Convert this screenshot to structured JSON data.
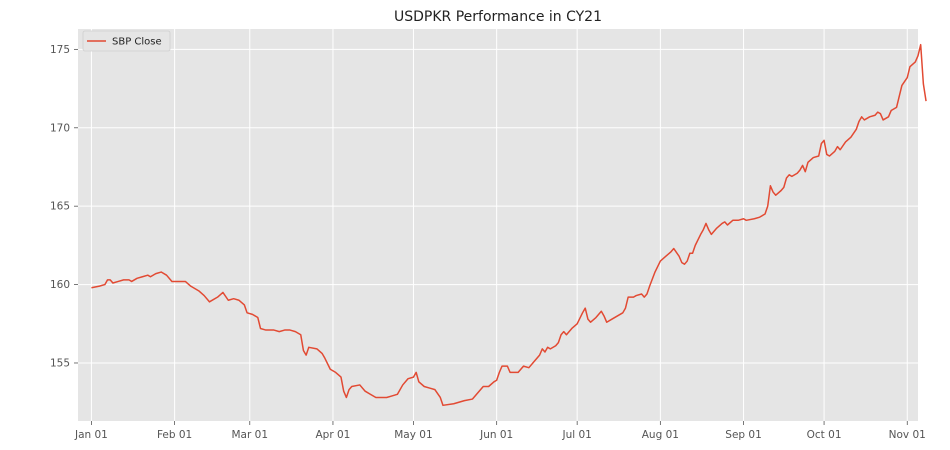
{
  "chart_data": {
    "type": "line",
    "title": "USDPKR Performance in CY21",
    "xlabel": "",
    "ylabel": "",
    "x_ticks": [
      "Jan 01",
      "Feb 01",
      "Mar 01",
      "Apr 01",
      "May 01",
      "Jun 01",
      "Jul 01",
      "Aug 01",
      "Sep 01",
      "Oct 01",
      "Nov 01"
    ],
    "y_ticks": [
      155,
      160,
      165,
      170,
      175
    ],
    "xlim": [
      "2020-12-27",
      "2021-11-05"
    ],
    "ylim": [
      151.3,
      176.3
    ],
    "grid": true,
    "legend_position": "top-left",
    "series": [
      {
        "name": "SBP Close",
        "color": "#E24A33",
        "points": [
          [
            "2021-01-01",
            159.8
          ],
          [
            "2021-01-04",
            159.9
          ],
          [
            "2021-01-06",
            160.0
          ],
          [
            "2021-01-07",
            160.3
          ],
          [
            "2021-01-08",
            160.3
          ],
          [
            "2021-01-09",
            160.1
          ],
          [
            "2021-01-11",
            160.2
          ],
          [
            "2021-01-13",
            160.3
          ],
          [
            "2021-01-15",
            160.3
          ],
          [
            "2021-01-16",
            160.2
          ],
          [
            "2021-01-18",
            160.4
          ],
          [
            "2021-01-20",
            160.5
          ],
          [
            "2021-01-22",
            160.6
          ],
          [
            "2021-01-23",
            160.5
          ],
          [
            "2021-01-25",
            160.7
          ],
          [
            "2021-01-27",
            160.8
          ],
          [
            "2021-01-29",
            160.6
          ],
          [
            "2021-01-31",
            160.2
          ],
          [
            "2021-02-03",
            160.2
          ],
          [
            "2021-02-05",
            160.2
          ],
          [
            "2021-02-07",
            159.9
          ],
          [
            "2021-02-10",
            159.6
          ],
          [
            "2021-02-12",
            159.3
          ],
          [
            "2021-02-14",
            158.9
          ],
          [
            "2021-02-17",
            159.2
          ],
          [
            "2021-02-19",
            159.5
          ],
          [
            "2021-02-21",
            159.0
          ],
          [
            "2021-02-23",
            159.1
          ],
          [
            "2021-02-25",
            159.0
          ],
          [
            "2021-02-27",
            158.7
          ],
          [
            "2021-02-28",
            158.2
          ],
          [
            "2021-03-02",
            158.1
          ],
          [
            "2021-03-04",
            157.9
          ],
          [
            "2021-03-05",
            157.2
          ],
          [
            "2021-03-07",
            157.1
          ],
          [
            "2021-03-10",
            157.1
          ],
          [
            "2021-03-12",
            157.0
          ],
          [
            "2021-03-14",
            157.1
          ],
          [
            "2021-03-16",
            157.1
          ],
          [
            "2021-03-18",
            157.0
          ],
          [
            "2021-03-20",
            156.8
          ],
          [
            "2021-03-21",
            155.8
          ],
          [
            "2021-03-22",
            155.5
          ],
          [
            "2021-03-23",
            156.0
          ],
          [
            "2021-03-26",
            155.9
          ],
          [
            "2021-03-28",
            155.6
          ],
          [
            "2021-03-29",
            155.3
          ],
          [
            "2021-03-31",
            154.6
          ],
          [
            "2021-04-02",
            154.4
          ],
          [
            "2021-04-04",
            154.1
          ],
          [
            "2021-04-05",
            153.2
          ],
          [
            "2021-04-06",
            152.8
          ],
          [
            "2021-04-07",
            153.3
          ],
          [
            "2021-04-08",
            153.5
          ],
          [
            "2021-04-11",
            153.6
          ],
          [
            "2021-04-13",
            153.2
          ],
          [
            "2021-04-15",
            153.0
          ],
          [
            "2021-04-17",
            152.8
          ],
          [
            "2021-04-19",
            152.8
          ],
          [
            "2021-04-21",
            152.8
          ],
          [
            "2021-04-23",
            152.9
          ],
          [
            "2021-04-25",
            153.0
          ],
          [
            "2021-04-27",
            153.6
          ],
          [
            "2021-04-29",
            154.0
          ],
          [
            "2021-05-01",
            154.1
          ],
          [
            "2021-05-02",
            154.4
          ],
          [
            "2021-05-03",
            153.8
          ],
          [
            "2021-05-05",
            153.5
          ],
          [
            "2021-05-07",
            153.4
          ],
          [
            "2021-05-09",
            153.3
          ],
          [
            "2021-05-11",
            152.8
          ],
          [
            "2021-05-12",
            152.3
          ],
          [
            "2021-05-16",
            152.4
          ],
          [
            "2021-05-20",
            152.6
          ],
          [
            "2021-05-23",
            152.7
          ],
          [
            "2021-05-25",
            153.1
          ],
          [
            "2021-05-27",
            153.5
          ],
          [
            "2021-05-29",
            153.5
          ],
          [
            "2021-05-31",
            153.8
          ],
          [
            "2021-06-01",
            153.9
          ],
          [
            "2021-06-02",
            154.4
          ],
          [
            "2021-06-03",
            154.8
          ],
          [
            "2021-06-05",
            154.8
          ],
          [
            "2021-06-06",
            154.4
          ],
          [
            "2021-06-09",
            154.4
          ],
          [
            "2021-06-11",
            154.8
          ],
          [
            "2021-06-13",
            154.7
          ],
          [
            "2021-06-15",
            155.1
          ],
          [
            "2021-06-17",
            155.5
          ],
          [
            "2021-06-18",
            155.9
          ],
          [
            "2021-06-19",
            155.7
          ],
          [
            "2021-06-20",
            156.0
          ],
          [
            "2021-06-21",
            155.9
          ],
          [
            "2021-06-23",
            156.1
          ],
          [
            "2021-06-24",
            156.3
          ],
          [
            "2021-06-25",
            156.8
          ],
          [
            "2021-06-26",
            157.0
          ],
          [
            "2021-06-27",
            156.8
          ],
          [
            "2021-06-29",
            157.2
          ],
          [
            "2021-07-01",
            157.5
          ],
          [
            "2021-07-03",
            158.2
          ],
          [
            "2021-07-04",
            158.5
          ],
          [
            "2021-07-05",
            157.8
          ],
          [
            "2021-07-06",
            157.6
          ],
          [
            "2021-07-08",
            157.9
          ],
          [
            "2021-07-10",
            158.3
          ],
          [
            "2021-07-11",
            158.0
          ],
          [
            "2021-07-12",
            157.6
          ],
          [
            "2021-07-14",
            157.8
          ],
          [
            "2021-07-16",
            158.0
          ],
          [
            "2021-07-18",
            158.2
          ],
          [
            "2021-07-19",
            158.5
          ],
          [
            "2021-07-20",
            159.2
          ],
          [
            "2021-07-22",
            159.2
          ],
          [
            "2021-07-23",
            159.3
          ],
          [
            "2021-07-25",
            159.4
          ],
          [
            "2021-07-26",
            159.2
          ],
          [
            "2021-07-27",
            159.4
          ],
          [
            "2021-07-28",
            159.9
          ],
          [
            "2021-07-30",
            160.8
          ],
          [
            "2021-08-01",
            161.5
          ],
          [
            "2021-08-03",
            161.8
          ],
          [
            "2021-08-05",
            162.1
          ],
          [
            "2021-08-06",
            162.3
          ],
          [
            "2021-08-08",
            161.8
          ],
          [
            "2021-08-09",
            161.4
          ],
          [
            "2021-08-10",
            161.3
          ],
          [
            "2021-08-11",
            161.5
          ],
          [
            "2021-08-12",
            162.0
          ],
          [
            "2021-08-13",
            162.0
          ],
          [
            "2021-08-14",
            162.5
          ],
          [
            "2021-08-16",
            163.2
          ],
          [
            "2021-08-17",
            163.5
          ],
          [
            "2021-08-18",
            163.9
          ],
          [
            "2021-08-19",
            163.5
          ],
          [
            "2021-08-20",
            163.2
          ],
          [
            "2021-08-22",
            163.6
          ],
          [
            "2021-08-24",
            163.9
          ],
          [
            "2021-08-25",
            164.0
          ],
          [
            "2021-08-26",
            163.8
          ],
          [
            "2021-08-28",
            164.1
          ],
          [
            "2021-08-30",
            164.1
          ],
          [
            "2021-09-01",
            164.2
          ],
          [
            "2021-09-02",
            164.1
          ],
          [
            "2021-09-05",
            164.2
          ],
          [
            "2021-09-07",
            164.3
          ],
          [
            "2021-09-09",
            164.5
          ],
          [
            "2021-09-10",
            165.0
          ],
          [
            "2021-09-11",
            166.3
          ],
          [
            "2021-09-12",
            165.9
          ],
          [
            "2021-09-13",
            165.7
          ],
          [
            "2021-09-15",
            166.0
          ],
          [
            "2021-09-16",
            166.2
          ],
          [
            "2021-09-17",
            166.8
          ],
          [
            "2021-09-18",
            167.0
          ],
          [
            "2021-09-19",
            166.9
          ],
          [
            "2021-09-21",
            167.1
          ],
          [
            "2021-09-22",
            167.3
          ],
          [
            "2021-09-23",
            167.6
          ],
          [
            "2021-09-24",
            167.2
          ],
          [
            "2021-09-25",
            167.8
          ],
          [
            "2021-09-27",
            168.1
          ],
          [
            "2021-09-29",
            168.2
          ],
          [
            "2021-09-30",
            169.0
          ],
          [
            "2021-10-01",
            169.2
          ],
          [
            "2021-10-02",
            168.3
          ],
          [
            "2021-10-03",
            168.2
          ],
          [
            "2021-10-05",
            168.5
          ],
          [
            "2021-10-06",
            168.8
          ],
          [
            "2021-10-07",
            168.6
          ],
          [
            "2021-10-09",
            169.1
          ],
          [
            "2021-10-11",
            169.4
          ],
          [
            "2021-10-13",
            169.9
          ],
          [
            "2021-10-14",
            170.4
          ],
          [
            "2021-10-15",
            170.7
          ],
          [
            "2021-10-16",
            170.5
          ],
          [
            "2021-10-18",
            170.7
          ],
          [
            "2021-10-20",
            170.8
          ],
          [
            "2021-10-21",
            171.0
          ],
          [
            "2021-10-22",
            170.9
          ],
          [
            "2021-10-23",
            170.5
          ],
          [
            "2021-10-25",
            170.7
          ],
          [
            "2021-10-26",
            171.1
          ],
          [
            "2021-10-28",
            171.3
          ],
          [
            "2021-10-29",
            172.0
          ],
          [
            "2021-10-30",
            172.7
          ],
          [
            "2021-11-01",
            173.2
          ],
          [
            "2021-11-02",
            173.9
          ],
          [
            "2021-11-04",
            174.2
          ],
          [
            "2021-11-05",
            174.6
          ],
          [
            "2021-11-06",
            175.3
          ],
          [
            "2021-11-07",
            172.8
          ],
          [
            "2021-11-08",
            171.7
          ]
        ]
      }
    ]
  }
}
